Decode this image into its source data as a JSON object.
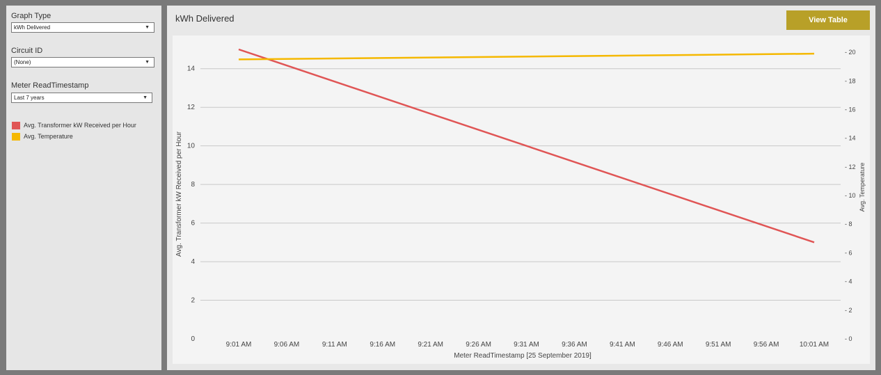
{
  "sidebar": {
    "graph_type": {
      "label": "Graph Type",
      "value": "kWh Delivered"
    },
    "circuit_id": {
      "label": "Circuit ID",
      "value": "(None)"
    },
    "timestamp": {
      "label": "Meter ReadTimestamp",
      "value": "Last 7 years"
    },
    "legend": [
      {
        "label": "Avg. Transformer kW Received per Hour",
        "color": "#e05555"
      },
      {
        "label": "Avg. Temperature",
        "color": "#f5b800"
      }
    ]
  },
  "panel": {
    "title": "kWh Delivered",
    "view_table_label": "View Table"
  },
  "chart_data": {
    "type": "line",
    "xlabel": "Meter ReadTimestamp [25 September 2019]",
    "ylabel": "Avg. Transformer kW Received per Hour",
    "y2label": "Avg. Temperature",
    "categories": [
      "9:01 AM",
      "9:06 AM",
      "9:11 AM",
      "9:16 AM",
      "9:21 AM",
      "9:26 AM",
      "9:31 AM",
      "9:36 AM",
      "9:41 AM",
      "9:46 AM",
      "9:51 AM",
      "9:56 AM",
      "10:01 AM"
    ],
    "ylim": [
      0,
      15
    ],
    "yticks": [
      0,
      2,
      4,
      6,
      8,
      10,
      12,
      14
    ],
    "y2lim": [
      0,
      20.2
    ],
    "y2ticks": [
      0,
      2,
      4,
      6,
      8,
      10,
      12,
      14,
      16,
      18,
      20
    ],
    "grid": true,
    "series": [
      {
        "name": "Avg. Transformer kW Received per Hour",
        "axis": "left",
        "color": "#e05555",
        "points": [
          {
            "x": "9:01 AM",
            "y": 15.0
          },
          {
            "x": "10:01 AM",
            "y": 5.0
          }
        ]
      },
      {
        "name": "Avg. Temperature",
        "axis": "right",
        "color": "#f5b800",
        "points": [
          {
            "x": "9:01 AM",
            "y": 19.5
          },
          {
            "x": "10:01 AM",
            "y": 19.9
          }
        ]
      }
    ]
  }
}
